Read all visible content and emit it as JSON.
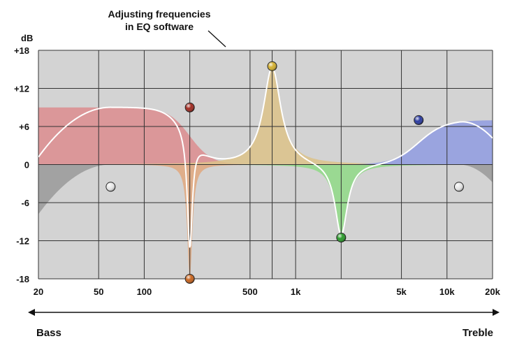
{
  "chart_data": {
    "type": "line",
    "title": "",
    "annotation": "Adjusting frequencies in EQ software",
    "annotation_lines": [
      "Adjusting frequencies",
      "in EQ software"
    ],
    "ylabel": "dB",
    "xlabel": "",
    "x_scale": "log",
    "xlim": [
      20,
      20000
    ],
    "ylim": [
      -18,
      18
    ],
    "grid": true,
    "x_ticks": [
      {
        "value": 20,
        "label": "20"
      },
      {
        "value": 50,
        "label": "50"
      },
      {
        "value": 100,
        "label": "100"
      },
      {
        "value": 500,
        "label": "500"
      },
      {
        "value": 1000,
        "label": "1k"
      },
      {
        "value": 5000,
        "label": "5k"
      },
      {
        "value": 10000,
        "label": "10k"
      },
      {
        "value": 20000,
        "label": "20k"
      }
    ],
    "x_grid": [
      20,
      50,
      100,
      200,
      500,
      700,
      1000,
      2000,
      5000,
      10000,
      20000
    ],
    "y_ticks": [
      {
        "value": 18,
        "label": "+18"
      },
      {
        "value": 12,
        "label": "+12"
      },
      {
        "value": 6,
        "label": "+6"
      },
      {
        "value": 0,
        "label": "0"
      },
      {
        "value": -6,
        "label": "-6"
      },
      {
        "value": -12,
        "label": "-12"
      },
      {
        "value": -18,
        "label": "-18"
      }
    ],
    "range_labels": {
      "low": "Bass",
      "high": "Treble"
    },
    "colors": {
      "plot_bg": "#d3d3d3",
      "grid": "#333333",
      "response": "#ffffff",
      "highpass": "#999999",
      "lowpass": "#999999",
      "lowshelf": "#dc8c8e",
      "notch": "#e0a77c",
      "peak": "#dcc288",
      "dip": "#8fd986",
      "highshelf": "#8f9be0"
    },
    "bands": [
      {
        "type": "highpass",
        "freq": 60,
        "gain": -3.5,
        "handle_color": "#e8e8e8"
      },
      {
        "type": "lowshelf",
        "freq": 200,
        "gain": 9,
        "handle_color": "#a02a20"
      },
      {
        "type": "notch",
        "freq": 200,
        "gain": -18,
        "handle_color": "#c8641e"
      },
      {
        "type": "peak",
        "freq": 700,
        "gain": 15.5,
        "handle_color": "#d4b030"
      },
      {
        "type": "dip",
        "freq": 2000,
        "gain": -11.5,
        "handle_color": "#2a9a2a"
      },
      {
        "type": "highshelf",
        "freq": 6500,
        "gain": 7,
        "handle_color": "#2a3aa0"
      },
      {
        "type": "lowpass",
        "freq": 12000,
        "gain": -3.5,
        "handle_color": "#e8e8e8"
      }
    ]
  }
}
